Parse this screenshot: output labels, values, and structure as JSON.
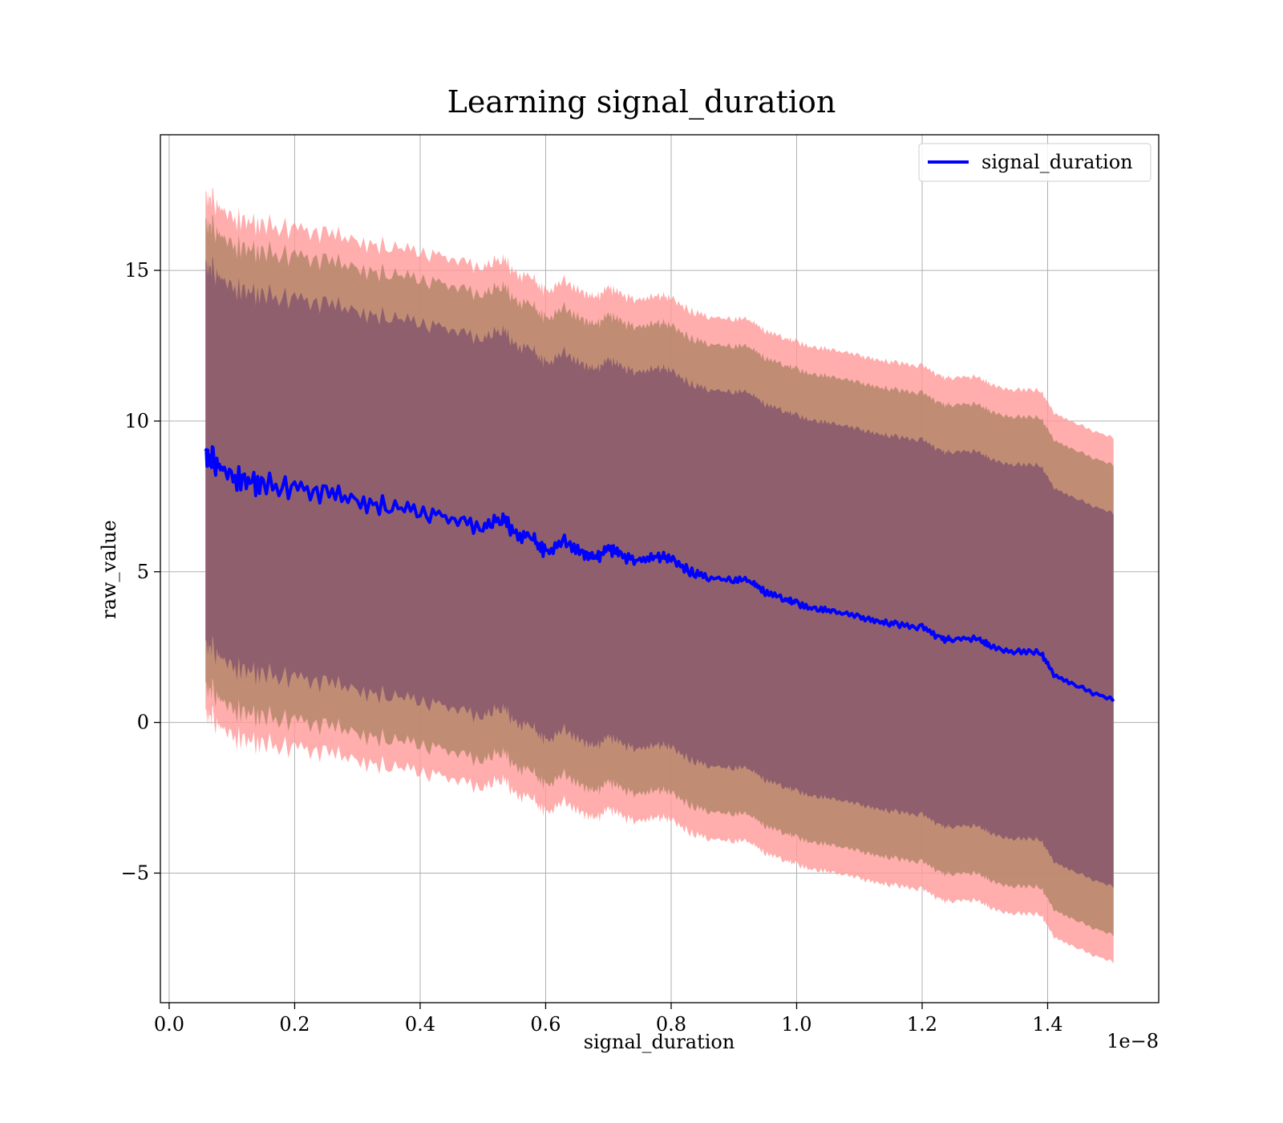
{
  "chart_data": {
    "type": "line",
    "title": "Learning signal_duration",
    "xlabel": "signal_duration",
    "ylabel": "raw_value",
    "x_offset_label": "1e−8",
    "xlim": [
      -0.014,
      1.577
    ],
    "ylim": [
      -9.3,
      19.5
    ],
    "x_ticks": [
      0.0,
      0.2,
      0.4,
      0.6,
      0.8,
      1.0,
      1.2,
      1.4
    ],
    "x_tick_labels": [
      "0.0",
      "0.2",
      "0.4",
      "0.6",
      "0.8",
      "1.0",
      "1.2",
      "1.4"
    ],
    "y_ticks": [
      -5,
      0,
      5,
      10,
      15
    ],
    "y_tick_labels": [
      "−5",
      "0",
      "5",
      "10",
      "15"
    ],
    "grid": true,
    "legend": {
      "position": "top-right",
      "entries": [
        "signal_duration"
      ]
    },
    "colors": {
      "line": "#0000ff",
      "band_outer": "#ff9999",
      "band_middle": "#b5876a",
      "band_inner": "#8b5a6e",
      "grid": "#b0b0b0"
    },
    "series": [
      {
        "name": "signal_duration",
        "x": [
          0.058,
          0.07,
          0.09,
          0.12,
          0.15,
          0.2,
          0.25,
          0.3,
          0.35,
          0.4,
          0.45,
          0.5,
          0.53,
          0.55,
          0.58,
          0.6,
          0.63,
          0.66,
          0.68,
          0.7,
          0.72,
          0.75,
          0.78,
          0.8,
          0.83,
          0.86,
          0.9,
          0.93,
          0.95,
          0.98,
          1.0,
          1.03,
          1.06,
          1.1,
          1.13,
          1.16,
          1.2,
          1.23,
          1.25,
          1.29,
          1.31,
          1.35,
          1.39,
          1.41,
          1.45,
          1.505
        ],
        "y": [
          9.0,
          8.7,
          8.3,
          8.0,
          7.9,
          7.8,
          7.6,
          7.3,
          7.2,
          7.0,
          6.8,
          6.4,
          6.8,
          6.3,
          6.1,
          5.6,
          6.0,
          5.6,
          5.4,
          5.8,
          5.5,
          5.35,
          5.5,
          5.45,
          5.0,
          4.8,
          4.7,
          4.7,
          4.3,
          4.1,
          3.95,
          3.75,
          3.7,
          3.5,
          3.35,
          3.25,
          3.15,
          2.75,
          2.75,
          2.8,
          2.5,
          2.35,
          2.3,
          1.6,
          1.2,
          0.7
        ]
      }
    ],
    "bands": [
      {
        "name": "outer",
        "half_width_start": 8.6,
        "half_width_end": 8.7
      },
      {
        "name": "middle",
        "half_width_start": 7.7,
        "half_width_end": 7.8
      },
      {
        "name": "inner",
        "half_width_start": 6.3,
        "half_width_end": 6.2
      }
    ]
  }
}
